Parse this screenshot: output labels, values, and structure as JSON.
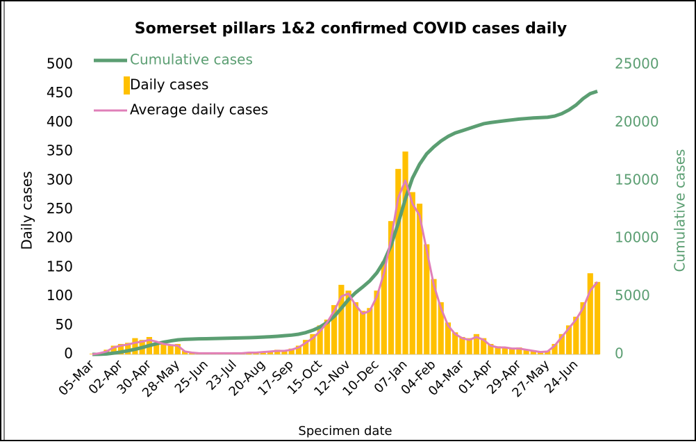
{
  "chart_data": {
    "type": "combo",
    "title": "Somerset pillars 1&2 confirmed COVID cases daily",
    "x_label": "Specimen date",
    "y_label": "Daily cases",
    "y2_label": "Cumulative cases",
    "categories": [
      "05-Mar",
      null,
      null,
      null,
      "02-Apr",
      null,
      null,
      null,
      "30-Apr",
      null,
      null,
      null,
      "28-May",
      null,
      null,
      null,
      "25-Jun",
      null,
      null,
      null,
      "23-Jul",
      null,
      null,
      null,
      "20-Aug",
      null,
      null,
      null,
      "17-Sep",
      null,
      null,
      null,
      "15-Oct",
      null,
      null,
      null,
      "12-Nov",
      null,
      null,
      null,
      "10-Dec",
      null,
      null,
      null,
      "07-Jan",
      null,
      null,
      null,
      "04-Feb",
      null,
      null,
      null,
      "04-Mar",
      null,
      null,
      null,
      "01-Apr",
      null,
      null,
      null,
      "29-Apr",
      null,
      null,
      null,
      "27-May",
      null,
      null,
      null,
      "24-Jun",
      null,
      null,
      null
    ],
    "series": [
      {
        "name": "Cumulative cases",
        "kind": "line",
        "axis": "y2",
        "color": "#5b9e72",
        "values": [
          0,
          10,
          40,
          110,
          200,
          310,
          440,
          590,
          760,
          920,
          1050,
          1160,
          1250,
          1300,
          1320,
          1340,
          1350,
          1365,
          1380,
          1395,
          1410,
          1425,
          1440,
          1460,
          1490,
          1520,
          1560,
          1610,
          1660,
          1740,
          1880,
          2080,
          2360,
          2750,
          3280,
          3980,
          4720,
          5320,
          5810,
          6340,
          7040,
          8020,
          9420,
          11310,
          13400,
          15200,
          16400,
          17300,
          17900,
          18400,
          18800,
          19100,
          19300,
          19500,
          19700,
          19900,
          20000,
          20080,
          20160,
          20230,
          20300,
          20350,
          20400,
          20430,
          20460,
          20560,
          20770,
          21090,
          21510,
          22070,
          22500,
          22700
        ]
      },
      {
        "name": "Daily cases",
        "kind": "bar",
        "color": "#ffc000",
        "values": [
          1,
          3,
          8,
          15,
          18,
          20,
          28,
          25,
          30,
          20,
          22,
          15,
          18,
          6,
          3,
          2,
          3,
          2,
          1,
          3,
          2,
          2,
          4,
          3,
          5,
          6,
          8,
          7,
          10,
          15,
          25,
          35,
          50,
          60,
          85,
          120,
          110,
          90,
          75,
          80,
          110,
          160,
          230,
          320,
          350,
          280,
          260,
          190,
          130,
          90,
          55,
          38,
          30,
          28,
          35,
          28,
          18,
          14,
          13,
          11,
          12,
          9,
          7,
          5,
          6,
          18,
          35,
          50,
          65,
          90,
          140,
          125
        ]
      },
      {
        "name": "Average daily cases",
        "kind": "line",
        "color": "#e07fb8",
        "values": [
          0,
          2,
          5,
          12,
          15,
          17,
          20,
          22,
          25,
          22,
          18,
          16,
          15,
          5,
          3,
          2,
          2,
          2,
          2,
          2,
          2,
          2,
          3,
          3,
          4,
          5,
          6,
          6,
          8,
          12,
          20,
          28,
          40,
          55,
          75,
          100,
          105,
          85,
          70,
          75,
          100,
          140,
          200,
          270,
          300,
          260,
          240,
          180,
          120,
          80,
          50,
          35,
          28,
          25,
          30,
          25,
          15,
          12,
          12,
          10,
          10,
          8,
          6,
          4,
          5,
          15,
          30,
          45,
          60,
          80,
          110,
          125
        ]
      }
    ],
    "ylim": [
      0,
      500
    ],
    "yticks": [
      0,
      50,
      100,
      150,
      200,
      250,
      300,
      350,
      400,
      450,
      500
    ],
    "y2lim": [
      0,
      25000
    ],
    "y2ticks": [
      0,
      5000,
      10000,
      15000,
      20000,
      25000
    ],
    "legend": "top-left"
  }
}
